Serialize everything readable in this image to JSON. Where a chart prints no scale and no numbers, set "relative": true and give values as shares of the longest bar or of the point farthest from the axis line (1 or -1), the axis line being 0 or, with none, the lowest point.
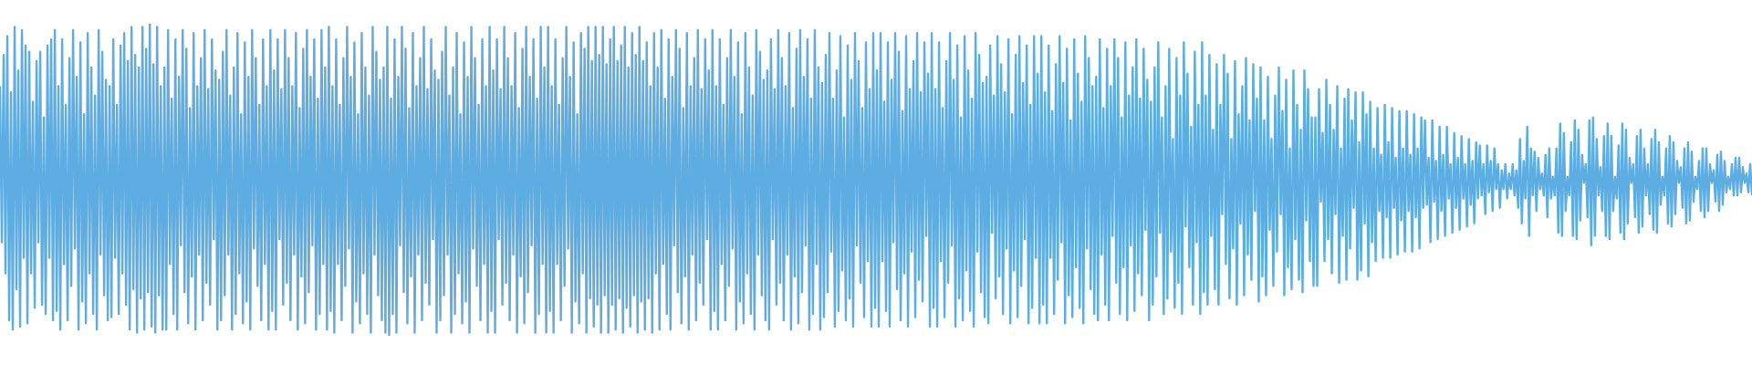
{
  "chart_data": {
    "type": "line",
    "relative": true,
    "color": "#5dade2",
    "categories": [
      null,
      null,
      null,
      null,
      null,
      null,
      null,
      null,
      null,
      null,
      null,
      null,
      null,
      null,
      null,
      null,
      null,
      null,
      null,
      null,
      null,
      null,
      null,
      null,
      null,
      null,
      null,
      null,
      null,
      null,
      null,
      null,
      null,
      null,
      null,
      null,
      null,
      null,
      null,
      null,
      null,
      null,
      null,
      null,
      null,
      null,
      null,
      null,
      null,
      null,
      null,
      null,
      null,
      null,
      null,
      null,
      null,
      null,
      null,
      null,
      null,
      null,
      null,
      null,
      null,
      null,
      null,
      null,
      null,
      null,
      null,
      null,
      null,
      null,
      null,
      null,
      null,
      null,
      null,
      null,
      null,
      null,
      null,
      null,
      null,
      null,
      null,
      null,
      null,
      null,
      null,
      null,
      null,
      null,
      null,
      null,
      null,
      null,
      null,
      null,
      null,
      null,
      null,
      null,
      null,
      null,
      null,
      null,
      null,
      null,
      null,
      null,
      null,
      null,
      null,
      null,
      null,
      null,
      null,
      null,
      null,
      null,
      null,
      null,
      null,
      null,
      null,
      null,
      null,
      null,
      null,
      null,
      null,
      null,
      null,
      null,
      null,
      null,
      null,
      null,
      null,
      null,
      null,
      null,
      null,
      null,
      null,
      null,
      null,
      null,
      null,
      null,
      null,
      null,
      null,
      null,
      null,
      null,
      null,
      null,
      null,
      null,
      null,
      null,
      null,
      null,
      null,
      null,
      null,
      null,
      null,
      null,
      null,
      null,
      null,
      null,
      null,
      null,
      null,
      null,
      null,
      null,
      null,
      null,
      null,
      null,
      null,
      null,
      null,
      null,
      null,
      null,
      null,
      null,
      null,
      null,
      null,
      null,
      null,
      null,
      null,
      null,
      null,
      null,
      null,
      null,
      null,
      null,
      null,
      null,
      null,
      null,
      null,
      null,
      null,
      null,
      null,
      null,
      null,
      null,
      null,
      null,
      null,
      null,
      null,
      null,
      null,
      null,
      null,
      null,
      null,
      null,
      null,
      null,
      null,
      null,
      null,
      null,
      null,
      null,
      null,
      null,
      null,
      null,
      null,
      null,
      null,
      null,
      null,
      null,
      null,
      null,
      null,
      null,
      null,
      null,
      null,
      null,
      null,
      null,
      null,
      null,
      null,
      null,
      null,
      null,
      null,
      null,
      null,
      null,
      null,
      null,
      null,
      null,
      null,
      null,
      null,
      null,
      null,
      null,
      null,
      null,
      null,
      null,
      null,
      null,
      null,
      null,
      null,
      null,
      null,
      null,
      null,
      null,
      null,
      null,
      null,
      null,
      null,
      null,
      null,
      null,
      null,
      null,
      null,
      null,
      null,
      null,
      null,
      null,
      null,
      null,
      null,
      null,
      null,
      null,
      null,
      null,
      null,
      null,
      null,
      null,
      null,
      null,
      null,
      null,
      null,
      null,
      null,
      null,
      null,
      null,
      null,
      null,
      null,
      null,
      null,
      null,
      null,
      null,
      null,
      null,
      null,
      null,
      null,
      null,
      null,
      null,
      null,
      null,
      null,
      null,
      null,
      null,
      null,
      null,
      null,
      null,
      null,
      null,
      null,
      null,
      null,
      null,
      null,
      null,
      null,
      null,
      null,
      null,
      null,
      null,
      null,
      null,
      null,
      null,
      null,
      null,
      null,
      null,
      null,
      null,
      null,
      null,
      null,
      null,
      null,
      null,
      null,
      null,
      null,
      null,
      null,
      null,
      null,
      null,
      null,
      null,
      null,
      null,
      null,
      null,
      null,
      null,
      null,
      null,
      null,
      null,
      null,
      null,
      null,
      null,
      null,
      null,
      null,
      null,
      null,
      null,
      null,
      null,
      null,
      null,
      null,
      null,
      null,
      null,
      null,
      null,
      null,
      null,
      null,
      null,
      null,
      null,
      null,
      null,
      null,
      null,
      null,
      null,
      null,
      null,
      null,
      null,
      null,
      null,
      null,
      null,
      null,
      null,
      null,
      null,
      null,
      null,
      null,
      null,
      null,
      null,
      null,
      null,
      null,
      null,
      null,
      null,
      null,
      null,
      null,
      null,
      null,
      null,
      null,
      null,
      null,
      null,
      null,
      null,
      null,
      null,
      null,
      null,
      null,
      null,
      null,
      null,
      null,
      null,
      null,
      null,
      null,
      null,
      null,
      null,
      null,
      null,
      null,
      null,
      null,
      null,
      null,
      null,
      null,
      null,
      null,
      null,
      null,
      null,
      null,
      null,
      null,
      null,
      null,
      null,
      null,
      null,
      null,
      null,
      null,
      null,
      null,
      null,
      null,
      null,
      null,
      null,
      null,
      null,
      null,
      null,
      null,
      null,
      null,
      null,
      null,
      null,
      null,
      null,
      null,
      null,
      null,
      null,
      null,
      null,
      null,
      null,
      null,
      null,
      null,
      null,
      null,
      null,
      null,
      null,
      null,
      null,
      null,
      null,
      null,
      null,
      null,
      null,
      null,
      null,
      null,
      null,
      null,
      null,
      null,
      null,
      null,
      null,
      null,
      null,
      null,
      null,
      null,
      null,
      null,
      null,
      null,
      null,
      null,
      null,
      null,
      null,
      null,
      null,
      null,
      null,
      null,
      null,
      null,
      null,
      null,
      null,
      null,
      null,
      null,
      null,
      null,
      null,
      null,
      null,
      null,
      null,
      null,
      null,
      null,
      null,
      null,
      null,
      null,
      null,
      null,
      null,
      null,
      null,
      null,
      null,
      null,
      null,
      null,
      null,
      null,
      null,
      null,
      null,
      null,
      null,
      null,
      null,
      null,
      null,
      null,
      null,
      null,
      null,
      null,
      null,
      null,
      null,
      null,
      null,
      null,
      null,
      null,
      null,
      null,
      null,
      null,
      null,
      null,
      null,
      null,
      null,
      null,
      null,
      null,
      null,
      null,
      null,
      null,
      null,
      null,
      null,
      null,
      null,
      null,
      null,
      null,
      null,
      null,
      null,
      null,
      null,
      null,
      null,
      null,
      null,
      null,
      null,
      null,
      null,
      null,
      null,
      null,
      null,
      null,
      null,
      null,
      null,
      null,
      null,
      null,
      null,
      null,
      null,
      null,
      null,
      null,
      null,
      null,
      null,
      null,
      null,
      null,
      null,
      null,
      null,
      null,
      null,
      null,
      null,
      null,
      null,
      null,
      null,
      null,
      null,
      null,
      null,
      null,
      null,
      null,
      null,
      null,
      null,
      null,
      null,
      null,
      null,
      null,
      null,
      null,
      null,
      null,
      null,
      null,
      null,
      null,
      null,
      null,
      null,
      null,
      null,
      null,
      null,
      null,
      null,
      null,
      null,
      null,
      null,
      null,
      null,
      null,
      null,
      null,
      null,
      null,
      null,
      null,
      null,
      null,
      null,
      null,
      null,
      null,
      null,
      null,
      null,
      null,
      null,
      null,
      null,
      null,
      null,
      null,
      null,
      null,
      null,
      null,
      null,
      null,
      null,
      null,
      null,
      null,
      null,
      null,
      null,
      null,
      null,
      null,
      null,
      null,
      null,
      null,
      null,
      null,
      null,
      null,
      null,
      null,
      null,
      null,
      null,
      null,
      null,
      null,
      null,
      null,
      null,
      null,
      null,
      null,
      null,
      null,
      null,
      null,
      null,
      null,
      null,
      null,
      null,
      null,
      null,
      null,
      null,
      null,
      null,
      null,
      null,
      null,
      null,
      null,
      null,
      null,
      null,
      null,
      null,
      null,
      null,
      null,
      null,
      null,
      null,
      null,
      null,
      null,
      null,
      null,
      null,
      null,
      null,
      null,
      null,
      null,
      null,
      null,
      null,
      null,
      null,
      null,
      null,
      null,
      null,
      null,
      null,
      null,
      null,
      null,
      null,
      null,
      null,
      null,
      null,
      null,
      null,
      null,
      null,
      null,
      null,
      null,
      null,
      null,
      null,
      null,
      null,
      null,
      null,
      null,
      null,
      null,
      null,
      null,
      null,
      null,
      null,
      null,
      null,
      null,
      null,
      null,
      null,
      null,
      null,
      null,
      null,
      null,
      null,
      null,
      null,
      null,
      null,
      null,
      null,
      null,
      null,
      null,
      null,
      null,
      null,
      null,
      null,
      null,
      null,
      null,
      null,
      null,
      null,
      null,
      null,
      null,
      null,
      null,
      null,
      null,
      null,
      null,
      null,
      null,
      null,
      null,
      null,
      null,
      null,
      null,
      null,
      null,
      null,
      null,
      null,
      null,
      null,
      null,
      null,
      null,
      null,
      null,
      null
    ],
    "values": [
      0.8,
      0.3,
      0.9,
      0.2,
      0.96,
      0.05,
      0.78,
      0.02,
      0.99,
      0.15,
      0.85,
      0.03,
      0.98,
      0.25,
      0.93,
      0.04,
      0.91,
      0.2,
      0.75,
      0.09,
      0.88,
      0.3,
      0.91,
      0.1,
      0.7,
      0.07,
      0.93,
      0.25,
      0.95,
      0.05,
      0.98,
      0.08,
      0.8,
      0.02,
      0.95,
      0.23,
      0.74,
      0.05,
      0.89,
      0.16,
      0.98,
      0.28,
      0.83,
      0.02,
      0.94,
      0.11,
      0.71,
      0.04,
      0.97,
      0.2,
      0.86,
      0.07,
      0.77,
      0.02,
      0.98,
      0.26,
      0.91,
      0.13,
      0.82,
      0.05,
      0.8,
      0.06,
      0.95,
      0.25,
      0.74,
      0.07,
      0.93,
      0.2,
      0.97,
      0.1,
      0.88,
      0.02,
      0.99,
      0.15,
      0.9,
      0.01,
      0.86,
      0.12,
      0.99,
      0.02,
      0.92,
      0.14,
      1,
      0.03,
      0.87,
      0.01,
      0.99,
      0.13,
      0.8,
      0.02,
      0.86,
      0.02,
      0.98,
      0.23,
      0.76,
      0.07,
      0.95,
      0.02,
      0.83,
      0.29,
      0.98,
      0.14,
      0.92,
      0.04,
      0.73,
      0.19,
      0.97,
      0.02,
      0.8,
      0.26,
      0.89,
      0.05,
      0.98,
      0.17,
      0.79,
      0.1,
      0.95,
      0.31,
      0.85,
      0.02,
      0.82,
      0.05,
      0.91,
      0.13,
      0.98,
      0.26,
      0.77,
      0.02,
      0.86,
      0.07,
      0.97,
      0.2,
      0.71,
      0.04,
      0.94,
      0.11,
      0.83,
      0.02,
      0.98,
      0.28,
      0.89,
      0.16,
      0.74,
      0.05,
      0.95,
      0.23,
      0.8,
      0.02,
      0.98,
      0.08,
      0.85,
      0.02,
      0.95,
      0.31,
      0.79,
      0.1,
      0.98,
      0.17,
      0.89,
      0.05,
      0.8,
      0.26,
      0.97,
      0.02,
      0.73,
      0.19,
      0.92,
      0.04,
      0.98,
      0.14,
      0.83,
      0.29,
      0.95,
      0.02,
      0.76,
      0.07,
      0.98,
      0.23,
      0.86,
      0.02,
      0.99,
      0.08,
      0.8,
      0.01,
      0.95,
      0.23,
      0.74,
      0.05,
      0.89,
      0.16,
      0.99,
      0.28,
      0.83,
      0.01,
      0.94,
      0.11,
      0.71,
      0.04,
      0.97,
      0.2,
      0.86,
      0.07,
      0.77,
      0.01,
      0.99,
      0.26,
      0.91,
      0.13,
      0.82,
      0.05,
      0.86,
      0.01,
      0.99,
      0,
      0.76,
      0.07,
      0.95,
      0.01,
      0.83,
      0.29,
      0.99,
      0.14,
      0.92,
      0.04,
      0.73,
      0.19,
      0.97,
      0.01,
      0.8,
      0.26,
      0.89,
      0.05,
      0.99,
      0.17,
      0.79,
      0.1,
      0.95,
      0.31,
      0.85,
      0.01,
      0.82,
      0.05,
      0.91,
      0.13,
      0.99,
      0.26,
      0.77,
      0.01,
      0.86,
      0.07,
      0.97,
      0.2,
      0.71,
      0.04,
      0.94,
      0.11,
      0.83,
      0.01,
      0.99,
      0.28,
      0.89,
      0.16,
      0.74,
      0.05,
      0.95,
      0.23,
      0.8,
      0.01,
      0.99,
      0.08,
      0.85,
      0.01,
      0.95,
      0.31,
      0.79,
      0.1,
      0.99,
      0.17,
      0.89,
      0.05,
      0.8,
      0.26,
      0.97,
      0.01,
      0.73,
      0.19,
      0.92,
      0.04,
      0.99,
      0.14,
      0.83,
      0.29,
      0.95,
      0.01,
      0.76,
      0.07,
      0.99,
      0.23,
      0.86,
      0.01,
      0.99,
      0.08,
      0.8,
      0.01,
      0.95,
      0.23,
      0.74,
      0.05,
      0.89,
      0.16,
      0.99,
      0.28,
      0.83,
      0.01,
      0.94,
      0.11,
      0.71,
      0.04,
      0.97,
      0.2,
      0.92,
      0.01,
      0.99,
      0.12,
      0.88,
      0.03,
      0.99,
      0.1,
      0.9,
      0.01,
      0.99,
      0.13,
      0.87,
      0.01,
      0.95,
      0.1,
      0.99,
      0.02,
      0.88,
      0.12,
      0.93,
      0.01,
      0.99,
      0.09,
      0.86,
      0.03,
      0.97,
      0.13,
      0.9,
      0.01,
      0.99,
      0.11,
      0.88,
      0.02,
      0.94,
      0.12,
      0.8,
      0.01,
      0.97,
      0.2,
      0.86,
      0.02,
      0.98,
      0.23,
      0.76,
      0.07,
      0.95,
      0.02,
      0.83,
      0.29,
      0.98,
      0.14,
      0.92,
      0.04,
      0.73,
      0.19,
      0.97,
      0.02,
      0.8,
      0.26,
      0.89,
      0.05,
      0.98,
      0.17,
      0.79,
      0.1,
      0.95,
      0.31,
      0.85,
      0.02,
      0.98,
      0.08,
      0.8,
      0.02,
      0.95,
      0.23,
      0.74,
      0.05,
      0.89,
      0.16,
      0.98,
      0.28,
      0.83,
      0.02,
      0.94,
      0.11,
      0.71,
      0.04,
      0.97,
      0.2,
      0.86,
      0.07,
      0.77,
      0.02,
      0.98,
      0.26,
      0.91,
      0.13,
      0.82,
      0.05,
      0.85,
      0.02,
      0.95,
      0.31,
      0.79,
      0.1,
      0.98,
      0.17,
      0.89,
      0.05,
      0.8,
      0.26,
      0.97,
      0.02,
      0.73,
      0.19,
      0.92,
      0.04,
      0.98,
      0.14,
      0.83,
      0.29,
      0.95,
      0.02,
      0.76,
      0.07,
      0.98,
      0.23,
      0.86,
      0.02,
      0.81,
      0.06,
      0.9,
      0.14,
      0.97,
      0.27,
      0.76,
      0.03,
      0.85,
      0.08,
      0.96,
      0.21,
      0.7,
      0.05,
      0.93,
      0.12,
      0.82,
      0.03,
      0.97,
      0.29,
      0.88,
      0.17,
      0.73,
      0.06,
      0.94,
      0.24,
      0.79,
      0.03,
      0.97,
      0.09,
      0.85,
      0.03,
      0.97,
      0.24,
      0.75,
      0.08,
      0.94,
      0.03,
      0.82,
      0.3,
      0.97,
      0.15,
      0.91,
      0.05,
      0.72,
      0.2,
      0.96,
      0.03,
      0.79,
      0.27,
      0.88,
      0.06,
      0.97,
      0.18,
      0.78,
      0.11,
      0.94,
      0.32,
      0.84,
      0.03,
      0.97,
      0.09,
      0.79,
      0.03,
      0.94,
      0.24,
      0.73,
      0.06,
      0.88,
      0.17,
      0.97,
      0.29,
      0.82,
      0.03,
      0.93,
      0.12,
      0.7,
      0.05,
      0.96,
      0.21,
      0.85,
      0.08,
      0.76,
      0.03,
      0.97,
      0.27,
      0.9,
      0.14,
      0.81,
      0.06,
      0.83,
      0.04,
      0.93,
      0.33,
      0.77,
      0.12,
      0.96,
      0.19,
      0.87,
      0.07,
      0.78,
      0.28,
      0.95,
      0.04,
      0.71,
      0.21,
      0.9,
      0.06,
      0.96,
      0.16,
      0.81,
      0.31,
      0.93,
      0.04,
      0.74,
      0.09,
      0.96,
      0.25,
      0.84,
      0.04,
      0.96,
      0.1,
      0.78,
      0.04,
      0.93,
      0.25,
      0.72,
      0.07,
      0.87,
      0.18,
      0.96,
      0.3,
      0.81,
      0.04,
      0.92,
      0.13,
      0.69,
      0.06,
      0.95,
      0.22,
      0.84,
      0.09,
      0.75,
      0.04,
      0.96,
      0.28,
      0.89,
      0.15,
      0.8,
      0.07,
      0.83,
      0.05,
      0.95,
      0.26,
      0.73,
      0.1,
      0.92,
      0.05,
      0.8,
      0.32,
      0.95,
      0.17,
      0.89,
      0.07,
      0.7,
      0.22,
      0.94,
      0.05,
      0.77,
      0.29,
      0.86,
      0.08,
      0.95,
      0.2,
      0.76,
      0.13,
      0.92,
      0.34,
      0.82,
      0.05,
      0.75,
      0.1,
      0.86,
      0.19,
      0.94,
      0.33,
      0.7,
      0.07,
      0.8,
      0.12,
      0.92,
      0.27,
      0.63,
      0.09,
      0.89,
      0.17,
      0.77,
      0.07,
      0.94,
      0.35,
      0.84,
      0.22,
      0.67,
      0.1,
      0.91,
      0.3,
      0.74,
      0.07,
      0.94,
      0.14,
      0.77,
      0.1,
      0.9,
      0.32,
      0.66,
      0.15,
      0.87,
      0.1,
      0.74,
      0.39,
      0.9,
      0.23,
      0.84,
      0.12,
      0.63,
      0.28,
      0.88,
      0.1,
      0.71,
      0.36,
      0.8,
      0.13,
      0.89,
      0.26,
      0.69,
      0.18,
      0.87,
      0.4,
      0.76,
      0.11,
      0.86,
      0.19,
      0.69,
      0.13,
      0.83,
      0.34,
      0.63,
      0.16,
      0.77,
      0.27,
      0.86,
      0.39,
      0.72,
      0.13,
      0.82,
      0.22,
      0.6,
      0.15,
      0.85,
      0.31,
      0.74,
      0.18,
      0.66,
      0.14,
      0.85,
      0.37,
      0.79,
      0.24,
      0.7,
      0.16,
      0.7,
      0.16,
      0.79,
      0.43,
      0.65,
      0.24,
      0.82,
      0.31,
      0.74,
      0.2,
      0.66,
      0.39,
      0.8,
      0.17,
      0.6,
      0.32,
      0.76,
      0.18,
      0.79,
      0.28,
      0.69,
      0.41,
      0.78,
      0.18,
      0.62,
      0.21,
      0.78,
      0.36,
      0.71,
      0.19,
      0.75,
      0.3,
      0.6,
      0.24,
      0.73,
      0.4,
      0.58,
      0.25,
      0.74,
      0.38,
      0.62,
      0.25,
      0.73,
      0.41,
      0.57,
      0.26,
      0.72,
      0.37,
      0.6,
      0.27,
      0.72,
      0.4,
      0.58,
      0.27,
      0.71,
      0.38,
      0.6,
      0.28,
      0.7,
      0.41,
      0.69,
      0.42,
      0.57,
      0.3,
      0.69,
      0.43,
      0.56,
      0.31,
      0.67,
      0.4,
      0.58,
      0.32,
      0.67,
      0.44,
      0.55,
      0.33,
      0.65,
      0.41,
      0.57,
      0.34,
      0.64,
      0.44,
      0.55,
      0.35,
      0.63,
      0.42,
      0.56,
      0.36,
      0.62,
      0.44,
      0.61,
      0.45,
      0.55,
      0.39,
      0.61,
      0.46,
      0.56,
      0.4,
      0.6,
      0.47,
      0.55,
      0.41,
      0.53,
      0.47,
      0.55,
      0.44,
      0.52,
      0.47,
      0.55,
      0.45,
      0.53,
      0.41,
      0.63,
      0.36,
      0.56,
      0.44,
      0.67,
      0.32,
      0.6,
      0.45,
      0.59,
      0.4,
      0.57,
      0.47,
      0.52,
      0.45,
      0.58,
      0.38,
      0.6,
      0.44,
      0.51,
      0.45,
      0.6,
      0.33,
      0.68,
      0.32,
      0.65,
      0.4,
      0.51,
      0.45,
      0.62,
      0.32,
      0.69,
      0.31,
      0.66,
      0.37,
      0.58,
      0.49,
      0.55,
      0.38,
      0.69,
      0.29,
      0.7,
      0.32,
      0.63,
      0.45,
      0.54,
      0.4,
      0.64,
      0.32,
      0.68,
      0.31,
      0.64,
      0.4,
      0.51,
      0.44,
      0.61,
      0.33,
      0.68,
      0.31,
      0.66,
      0.36,
      0.57,
      0.49,
      0.55,
      0.38,
      0.64,
      0.33,
      0.66,
      0.35,
      0.6,
      0.45,
      0.55,
      0.39,
      0.63,
      0.34,
      0.66,
      0.33,
      0.62,
      0.42,
      0.51,
      0.45,
      0.6,
      0.36,
      0.64,
      0.35,
      0.62,
      0.39,
      0.56,
      0.49,
      0.54,
      0.41,
      0.6,
      0.36,
      0.62,
      0.37,
      0.59,
      0.43,
      0.51,
      0.47,
      0.56,
      0.4,
      0.6,
      0.38,
      0.6,
      0.4,
      0.55,
      0.49,
      0.53,
      0.43,
      0.58,
      0.4,
      0.59,
      0.42,
      0.56,
      0.46,
      0.51,
      0.47,
      0.55,
      0.45,
      0.57,
      0.45,
      0.57,
      0.46,
      0.54,
      0.49,
      0.52,
      0.46,
      0.55,
      0.45
    ]
  }
}
